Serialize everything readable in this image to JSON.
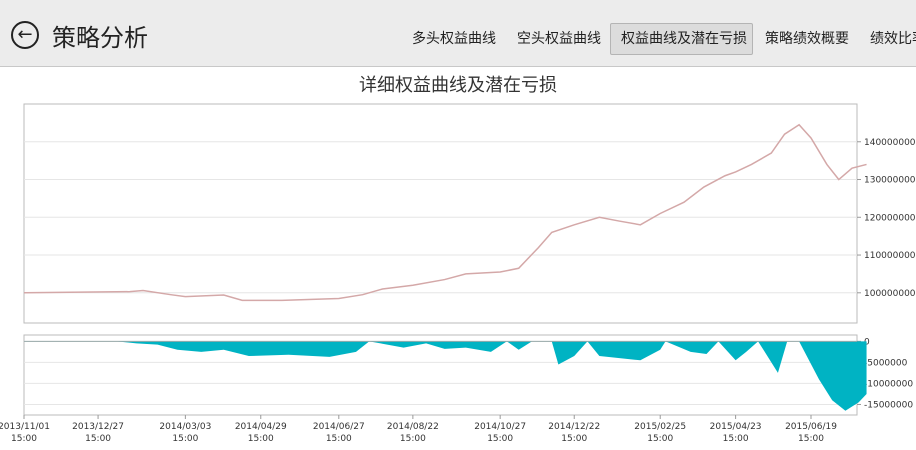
{
  "header": {
    "title": "策略分析",
    "back_icon": "arrow-left-circle-icon",
    "tabs": [
      {
        "label": "多头权益曲线",
        "active": false
      },
      {
        "label": "空头权益曲线",
        "active": false
      },
      {
        "label": "权益曲线及潜在亏损",
        "active": true
      },
      {
        "label": "策略绩效概要",
        "active": false
      },
      {
        "label": "绩效比率",
        "active": false
      }
    ]
  },
  "chart_data": [
    {
      "type": "line",
      "title": "详细权益曲线及潜在亏损",
      "color": "#d4a8a8",
      "grid": true,
      "yticks": [
        100000000,
        110000000,
        120000000,
        130000000,
        140000000
      ],
      "ylim": [
        92000000,
        150000000
      ],
      "xticks": [
        "2013/11/01 15:00",
        "2013/12/27 15:00",
        "2014/03/03 15:00",
        "2014/04/29 15:00",
        "2014/06/27 15:00",
        "2014/08/22 15:00",
        "2014/10/27 15:00",
        "2014/12/22 15:00",
        "2015/02/25 15:00",
        "2015/04/23 15:00",
        "2015/06/19 15:00"
      ],
      "points": [
        [
          "2013/11/01",
          100000000
        ],
        [
          "2014/01/20",
          100300000
        ],
        [
          "2014/01/30",
          100600000
        ],
        [
          "2014/02/20",
          99500000
        ],
        [
          "2014/03/03",
          99000000
        ],
        [
          "2014/04/01",
          99400000
        ],
        [
          "2014/04/15",
          98000000
        ],
        [
          "2014/05/15",
          98000000
        ],
        [
          "2014/06/27",
          98500000
        ],
        [
          "2014/07/15",
          99500000
        ],
        [
          "2014/07/30",
          101000000
        ],
        [
          "2014/08/22",
          102000000
        ],
        [
          "2014/09/15",
          103500000
        ],
        [
          "2014/10/01",
          105000000
        ],
        [
          "2014/10/27",
          105500000
        ],
        [
          "2014/11/10",
          106500000
        ],
        [
          "2014/11/25",
          112000000
        ],
        [
          "2014/12/05",
          116000000
        ],
        [
          "2014/12/22",
          118000000
        ],
        [
          "2015/01/10",
          120000000
        ],
        [
          "2015/01/25",
          119000000
        ],
        [
          "2015/02/10",
          118000000
        ],
        [
          "2015/02/25",
          121000000
        ],
        [
          "2015/03/15",
          124000000
        ],
        [
          "2015/03/30",
          128000000
        ],
        [
          "2015/04/15",
          131000000
        ],
        [
          "2015/04/23",
          132000000
        ],
        [
          "2015/05/05",
          134000000
        ],
        [
          "2015/05/20",
          137000000
        ],
        [
          "2015/05/30",
          142000000
        ],
        [
          "2015/06/10",
          144500000
        ],
        [
          "2015/06/19",
          141000000
        ],
        [
          "2015/07/01",
          134000000
        ],
        [
          "2015/07/10",
          130000000
        ],
        [
          "2015/07/20",
          133000000
        ],
        [
          "2015/07/31",
          134000000
        ]
      ]
    },
    {
      "type": "area",
      "color": "#00b3c3",
      "grid": true,
      "yticks": [
        0,
        -5000000,
        -10000000,
        -15000000
      ],
      "ylim": [
        -17500000,
        1500000
      ],
      "points": [
        [
          "2013/11/01",
          0
        ],
        [
          "2014/01/10",
          0
        ],
        [
          "2014/01/25",
          -500000
        ],
        [
          "2014/02/10",
          -800000
        ],
        [
          "2014/02/25",
          -2000000
        ],
        [
          "2014/03/15",
          -2500000
        ],
        [
          "2014/04/01",
          -2000000
        ],
        [
          "2014/04/20",
          -3500000
        ],
        [
          "2014/05/20",
          -3200000
        ],
        [
          "2014/06/20",
          -3700000
        ],
        [
          "2014/07/10",
          -2500000
        ],
        [
          "2014/07/20",
          0
        ],
        [
          "2014/08/15",
          -1500000
        ],
        [
          "2014/09/01",
          -500000
        ],
        [
          "2014/09/15",
          -1800000
        ],
        [
          "2014/10/01",
          -1500000
        ],
        [
          "2014/10/20",
          -2500000
        ],
        [
          "2014/11/01",
          0
        ],
        [
          "2014/11/10",
          -2000000
        ],
        [
          "2014/11/20",
          0
        ],
        [
          "2014/12/05",
          0
        ],
        [
          "2014/12/10",
          -5500000
        ],
        [
          "2014/12/22",
          -3500000
        ],
        [
          "2015/01/01",
          0
        ],
        [
          "2015/01/10",
          -3500000
        ],
        [
          "2015/02/10",
          -4500000
        ],
        [
          "2015/02/25",
          -2000000
        ],
        [
          "2015/03/01",
          0
        ],
        [
          "2015/03/20",
          -2500000
        ],
        [
          "2015/04/01",
          -3000000
        ],
        [
          "2015/04/10",
          0
        ],
        [
          "2015/04/23",
          -4500000
        ],
        [
          "2015/05/01",
          -2500000
        ],
        [
          "2015/05/10",
          0
        ],
        [
          "2015/05/25",
          -7500000
        ],
        [
          "2015/06/01",
          0
        ],
        [
          "2015/06/10",
          0
        ],
        [
          "2015/06/25",
          -9000000
        ],
        [
          "2015/07/05",
          -14000000
        ],
        [
          "2015/07/15",
          -16500000
        ],
        [
          "2015/07/25",
          -14500000
        ],
        [
          "2015/07/31",
          -12500000
        ]
      ]
    }
  ]
}
